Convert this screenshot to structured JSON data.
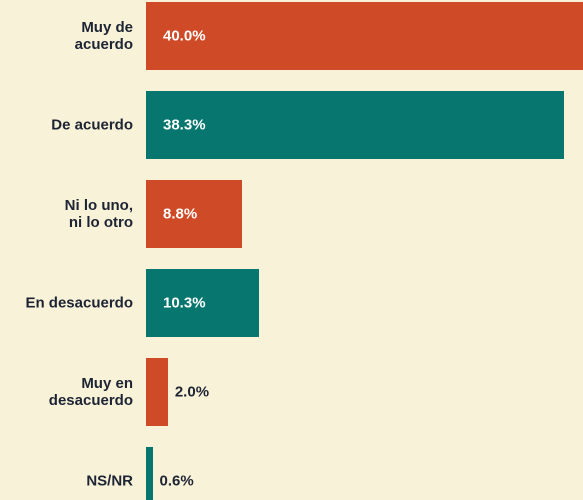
{
  "chart_data": {
    "type": "bar",
    "orientation": "horizontal",
    "categories": [
      "Muy de\nacuerdo",
      "De acuerdo",
      "Ni lo uno,\nni lo otro",
      "En desacuerdo",
      "Muy en\ndesacuerdo",
      "NS/NR"
    ],
    "values": [
      40.0,
      38.3,
      8.8,
      10.3,
      2.0,
      0.6
    ],
    "value_labels": [
      "40.0%",
      "38.3%",
      "8.8%",
      "10.3%",
      "2.0%",
      "0.6%"
    ],
    "colors": [
      "#cf4a27",
      "#07766e",
      "#cf4a27",
      "#07766e",
      "#cf4a27",
      "#07766e"
    ],
    "xlim": [
      0,
      40
    ]
  }
}
